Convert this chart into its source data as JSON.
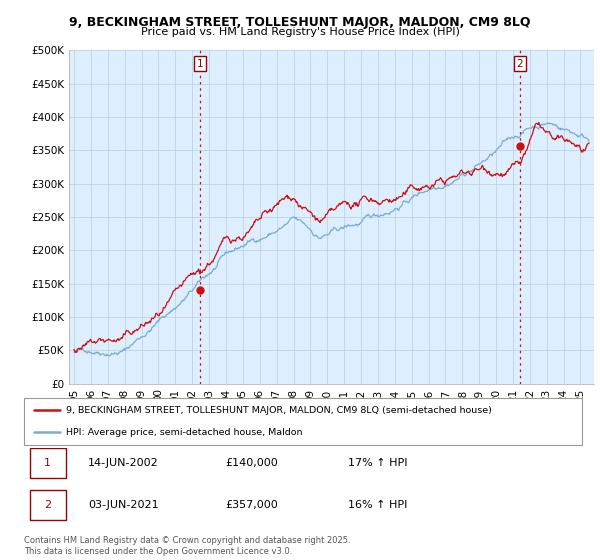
{
  "title1": "9, BECKINGHAM STREET, TOLLESHUNT MAJOR, MALDON, CM9 8LQ",
  "title2": "Price paid vs. HM Land Registry's House Price Index (HPI)",
  "ylim": [
    0,
    500000
  ],
  "yticks": [
    0,
    50000,
    100000,
    150000,
    200000,
    250000,
    300000,
    350000,
    400000,
    450000,
    500000
  ],
  "ytick_labels": [
    "£0",
    "£50K",
    "£100K",
    "£150K",
    "£200K",
    "£250K",
    "£300K",
    "£350K",
    "£400K",
    "£450K",
    "£500K"
  ],
  "xlim_start": 1994.7,
  "xlim_end": 2025.8,
  "xtick_years": [
    1995,
    1996,
    1997,
    1998,
    1999,
    2000,
    2001,
    2002,
    2003,
    2004,
    2005,
    2006,
    2007,
    2008,
    2009,
    2010,
    2011,
    2012,
    2013,
    2014,
    2015,
    2016,
    2017,
    2018,
    2019,
    2020,
    2021,
    2022,
    2023,
    2024,
    2025
  ],
  "xtick_labels": [
    "95",
    "96",
    "97",
    "98",
    "99",
    "00",
    "01",
    "02",
    "03",
    "04",
    "05",
    "06",
    "07",
    "08",
    "09",
    "10",
    "11",
    "12",
    "13",
    "14",
    "15",
    "16",
    "17",
    "18",
    "19",
    "20",
    "21",
    "22",
    "23",
    "24",
    "25"
  ],
  "hpi_color": "#7aadd4",
  "price_color": "#cc1111",
  "bg_fill_color": "#ddeeff",
  "vline_color": "#cc1111",
  "marker1_year": 2002.45,
  "marker2_year": 2021.42,
  "marker1_value": 140000,
  "marker2_value": 357000,
  "annotation1": "1",
  "annotation2": "2",
  "legend_label1": "9, BECKINGHAM STREET, TOLLESHUNT MAJOR, MALDON, CM9 8LQ (semi-detached house)",
  "legend_label2": "HPI: Average price, semi-detached house, Maldon",
  "table_row1": [
    "1",
    "14-JUN-2002",
    "£140,000",
    "17% ↑ HPI"
  ],
  "table_row2": [
    "2",
    "03-JUN-2021",
    "£357,000",
    "16% ↑ HPI"
  ],
  "copyright_text": "Contains HM Land Registry data © Crown copyright and database right 2025.\nThis data is licensed under the Open Government Licence v3.0.",
  "grid_color": "#bbccdd",
  "noise_seed": 42,
  "n_points": 750
}
